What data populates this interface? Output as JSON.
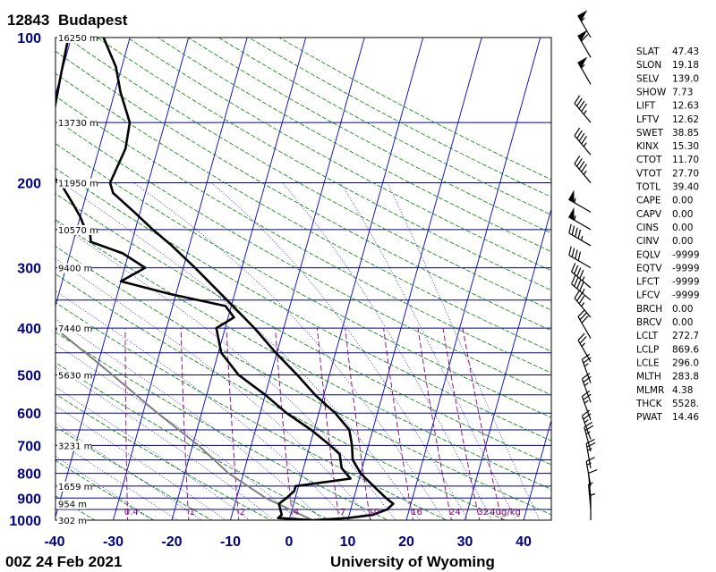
{
  "header": {
    "station_id": "12843",
    "station_name": "Budapest"
  },
  "footer": {
    "timestamp": "00Z 24 Feb 2021",
    "source": "University of Wyoming"
  },
  "colors": {
    "isobar": "#000080",
    "skewed_isotherm": "#0000c0",
    "dry_adiabat": "#008000",
    "moist_adiabat": "#0000a0",
    "mixing_ratio": "#800080",
    "temperature": "#000000",
    "dewpoint": "#000000",
    "parcel": "#808080",
    "label_blue": "#000080"
  },
  "chart_data": {
    "type": "skew-t log-p",
    "pressure_levels": [
      100,
      200,
      300,
      400,
      500,
      600,
      700,
      800,
      900,
      1000
    ],
    "temperature_ticks": [
      -40,
      -30,
      -20,
      -10,
      0,
      10,
      20,
      30,
      40
    ],
    "height_labels": [
      {
        "p": 100,
        "label": "16250 m"
      },
      {
        "p": 150,
        "label": "13730 m"
      },
      {
        "p": 200,
        "label": "11950 m"
      },
      {
        "p": 250,
        "label": "10570 m"
      },
      {
        "p": 300,
        "label": "9400 m"
      },
      {
        "p": 400,
        "label": "7440 m"
      },
      {
        "p": 500,
        "label": "5630 m"
      },
      {
        "p": 700,
        "label": "3231 m"
      },
      {
        "p": 850,
        "label": "1659 m"
      },
      {
        "p": 925,
        "label": "954 m"
      },
      {
        "p": 1000,
        "label": "302 m"
      }
    ],
    "mixing_ratio_labels": [
      "0.4",
      "1",
      "2",
      "4",
      "7",
      "10",
      "16",
      "24",
      "32",
      "40g/kg"
    ],
    "mixing_ratio_values": [
      0.4,
      1,
      2,
      4,
      7,
      10,
      16,
      24,
      32,
      40
    ],
    "temperature_profile": [
      {
        "p": 1000,
        "t": 4.0
      },
      {
        "p": 990,
        "t": 10.0
      },
      {
        "p": 975,
        "t": 14.0
      },
      {
        "p": 950,
        "t": 16.2
      },
      {
        "p": 925,
        "t": 17.0
      },
      {
        "p": 900,
        "t": 15.5
      },
      {
        "p": 850,
        "t": 12.8
      },
      {
        "p": 800,
        "t": 10.0
      },
      {
        "p": 750,
        "t": 8.0
      },
      {
        "p": 700,
        "t": 7.2
      },
      {
        "p": 650,
        "t": 6.0
      },
      {
        "p": 600,
        "t": 2.8
      },
      {
        "p": 550,
        "t": -1.5
      },
      {
        "p": 500,
        "t": -5.5
      },
      {
        "p": 450,
        "t": -10.2
      },
      {
        "p": 400,
        "t": -15.0
      },
      {
        "p": 350,
        "t": -21.0
      },
      {
        "p": 300,
        "t": -28.0
      },
      {
        "p": 270,
        "t": -33.0
      },
      {
        "p": 250,
        "t": -37.0
      },
      {
        "p": 230,
        "t": -41.0
      },
      {
        "p": 210,
        "t": -45.5
      },
      {
        "p": 200,
        "t": -46.5
      },
      {
        "p": 170,
        "t": -45.5
      },
      {
        "p": 150,
        "t": -46.0
      },
      {
        "p": 130,
        "t": -49.0
      },
      {
        "p": 115,
        "t": -51.0
      },
      {
        "p": 100,
        "t": -54.5
      }
    ],
    "dewpoint_profile": [
      {
        "p": 1000,
        "t": 4.0
      },
      {
        "p": 990,
        "t": -2.0
      },
      {
        "p": 975,
        "t": -1.5
      },
      {
        "p": 950,
        "t": -2.0
      },
      {
        "p": 925,
        "t": -2.5
      },
      {
        "p": 900,
        "t": -1.5
      },
      {
        "p": 870,
        "t": -0.5
      },
      {
        "p": 850,
        "t": -0.5
      },
      {
        "p": 820,
        "t": 8.5
      },
      {
        "p": 780,
        "t": 6.5
      },
      {
        "p": 730,
        "t": 5.5
      },
      {
        "p": 700,
        "t": 3.5
      },
      {
        "p": 650,
        "t": -0.5
      },
      {
        "p": 600,
        "t": -5.5
      },
      {
        "p": 550,
        "t": -10.0
      },
      {
        "p": 500,
        "t": -15.5
      },
      {
        "p": 450,
        "t": -19.5
      },
      {
        "p": 400,
        "t": -21.5
      },
      {
        "p": 380,
        "t": -19.0
      },
      {
        "p": 360,
        "t": -21.0
      },
      {
        "p": 340,
        "t": -31.0
      },
      {
        "p": 320,
        "t": -40.0
      },
      {
        "p": 300,
        "t": -36.5
      },
      {
        "p": 280,
        "t": -41.0
      },
      {
        "p": 265,
        "t": -47.0
      },
      {
        "p": 255,
        "t": -47.5
      },
      {
        "p": 245,
        "t": -49.0
      },
      {
        "p": 235,
        "t": -50.0
      },
      {
        "p": 220,
        "t": -52.0
      },
      {
        "p": 200,
        "t": -55.0
      },
      {
        "p": 185,
        "t": -59.5
      },
      {
        "p": 175,
        "t": -59.0
      },
      {
        "p": 160,
        "t": -59.0
      },
      {
        "p": 140,
        "t": -59.5
      },
      {
        "p": 120,
        "t": -60.0
      },
      {
        "p": 100,
        "t": -60.5
      }
    ],
    "parcel_profile": [
      {
        "p": 1000,
        "t": 4.0
      },
      {
        "p": 900,
        "t": -5.0
      },
      {
        "p": 800,
        "t": -12.5
      },
      {
        "p": 700,
        "t": -19.0
      },
      {
        "p": 600,
        "t": -27.5
      },
      {
        "p": 500,
        "t": -37.0
      },
      {
        "p": 400,
        "t": -49.0
      },
      {
        "p": 300,
        "t": -63.0
      },
      {
        "p": 200,
        "t": -81.0
      },
      {
        "p": 150,
        "t": -91.0
      },
      {
        "p": 100,
        "t": -105.0
      }
    ]
  },
  "indices": [
    {
      "key": "SLAT",
      "value": "47.43"
    },
    {
      "key": "SLON",
      "value": "19.18"
    },
    {
      "key": "SELV",
      "value": "139.0"
    },
    {
      "key": "SHOW",
      "value": "7.73"
    },
    {
      "key": "LIFT",
      "value": "12.63"
    },
    {
      "key": "LFTV",
      "value": "12.62"
    },
    {
      "key": "SWET",
      "value": "38.85"
    },
    {
      "key": "KINX",
      "value": "15.30"
    },
    {
      "key": "CTOT",
      "value": "11.70"
    },
    {
      "key": "VTOT",
      "value": "27.70"
    },
    {
      "key": "TOTL",
      "value": "39.40"
    },
    {
      "key": "CAPE",
      "value": "0.00"
    },
    {
      "key": "CAPV",
      "value": "0.00"
    },
    {
      "key": "CINS",
      "value": "0.00"
    },
    {
      "key": "CINV",
      "value": "0.00"
    },
    {
      "key": "EQLV",
      "value": "-9999"
    },
    {
      "key": "EQTV",
      "value": "-9999"
    },
    {
      "key": "LFCT",
      "value": "-9999"
    },
    {
      "key": "LFCV",
      "value": "-9999"
    },
    {
      "key": "BRCH",
      "value": "0.00"
    },
    {
      "key": "BRCV",
      "value": "0.00"
    },
    {
      "key": "LCLT",
      "value": "272.7"
    },
    {
      "key": "LCLP",
      "value": "869.6"
    },
    {
      "key": "LCLE",
      "value": "296.0"
    },
    {
      "key": "MLTH",
      "value": "283.8"
    },
    {
      "key": "MLMR",
      "value": "4.38"
    },
    {
      "key": "THCK",
      "value": "5528."
    },
    {
      "key": "PWAT",
      "value": "14.46"
    }
  ],
  "wind_barbs": [
    {
      "p": 100,
      "dir": 330,
      "kt": 55
    },
    {
      "p": 110,
      "dir": 330,
      "kt": 60
    },
    {
      "p": 125,
      "dir": 330,
      "kt": 55
    },
    {
      "p": 150,
      "dir": 320,
      "kt": 45
    },
    {
      "p": 175,
      "dir": 320,
      "kt": 45
    },
    {
      "p": 200,
      "dir": 320,
      "kt": 45
    },
    {
      "p": 230,
      "dir": 300,
      "kt": 55
    },
    {
      "p": 250,
      "dir": 300,
      "kt": 55
    },
    {
      "p": 270,
      "dir": 300,
      "kt": 45
    },
    {
      "p": 300,
      "dir": 300,
      "kt": 40
    },
    {
      "p": 330,
      "dir": 310,
      "kt": 45
    },
    {
      "p": 350,
      "dir": 310,
      "kt": 45
    },
    {
      "p": 380,
      "dir": 320,
      "kt": 35
    },
    {
      "p": 420,
      "dir": 330,
      "kt": 30
    },
    {
      "p": 470,
      "dir": 330,
      "kt": 25
    },
    {
      "p": 520,
      "dir": 340,
      "kt": 25
    },
    {
      "p": 570,
      "dir": 340,
      "kt": 25
    },
    {
      "p": 620,
      "dir": 340,
      "kt": 25
    },
    {
      "p": 680,
      "dir": 340,
      "kt": 25
    },
    {
      "p": 720,
      "dir": 345,
      "kt": 25
    },
    {
      "p": 780,
      "dir": 350,
      "kt": 25
    },
    {
      "p": 850,
      "dir": 350,
      "kt": 15
    },
    {
      "p": 900,
      "dir": 355,
      "kt": 10
    },
    {
      "p": 950,
      "dir": 355,
      "kt": 5
    },
    {
      "p": 1000,
      "dir": 0,
      "kt": 5
    }
  ]
}
